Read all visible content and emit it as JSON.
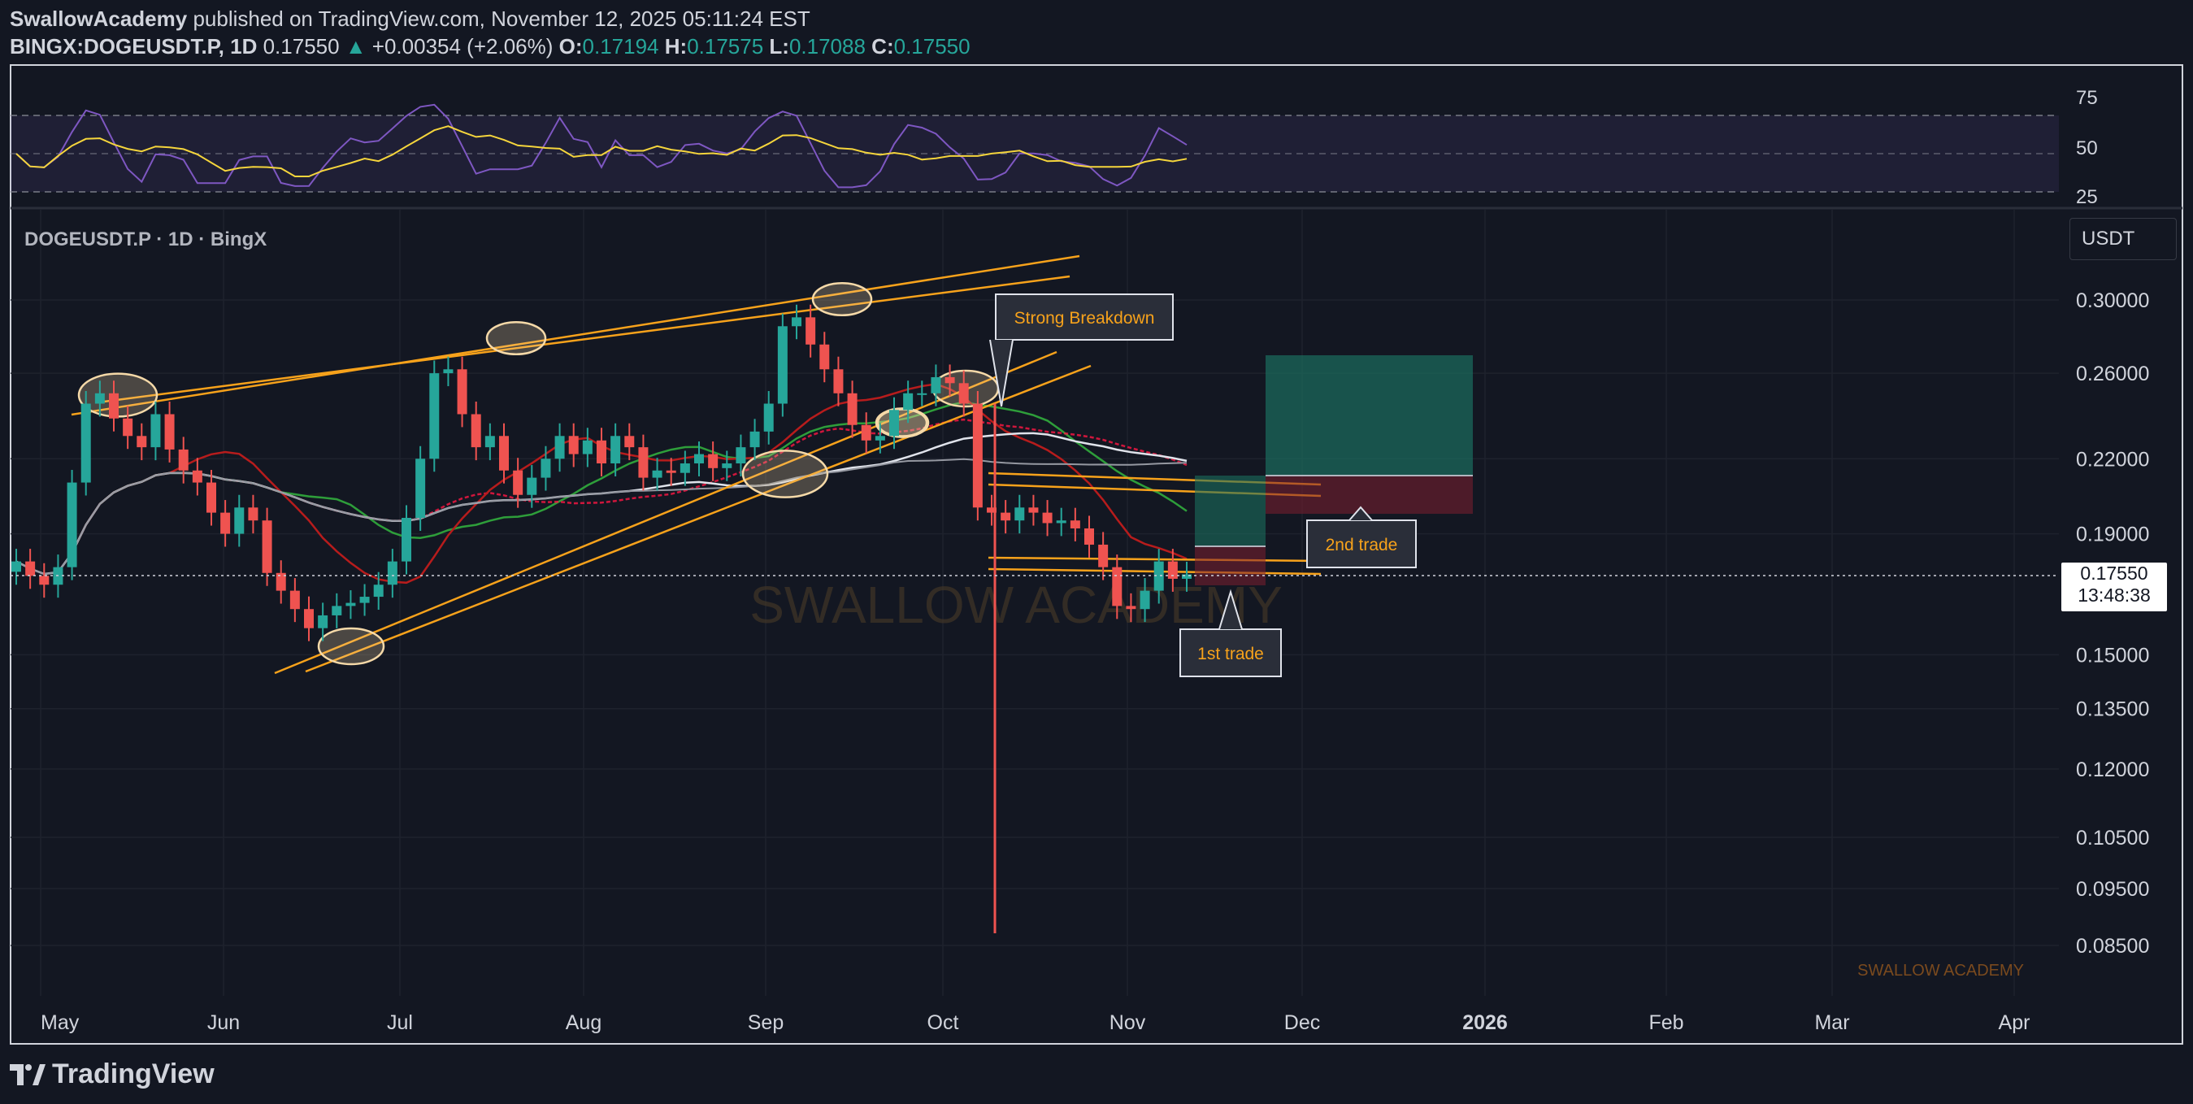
{
  "header": {
    "author": "SwallowAcademy",
    "published_text": "published on TradingView.com, November 12, 2025 05:11:24 EST",
    "symbol": "BINGX:DOGEUSDT.P, 1D",
    "last": "0.17550",
    "change": "+0.00354 (+2.06%)",
    "o_label": "O:",
    "o": "0.17194",
    "h_label": "H:",
    "h": "0.17575",
    "l_label": "L:",
    "l": "0.17088",
    "c_label": "C:",
    "c": "0.17550"
  },
  "chart_title": "DOGEUSDT.P · 1D · BingX",
  "currency": "USDT",
  "watermark": "SWALLOW ACADEMY",
  "footer_watermark": "SWALLOW ACADEMY",
  "brand": "TradingView",
  "price_tag": {
    "price": "0.17550",
    "countdown": "13:48:38"
  },
  "colors": {
    "up": "#26a69a",
    "down": "#ef5350",
    "orange": "#f7a21b",
    "rsi": "#7e57c2",
    "rsi_ma": "#f5d53c",
    "bg": "#131722"
  },
  "annotations": {
    "breakdown": "Strong Breakdown",
    "second": "2nd trade",
    "first": "1st trade"
  },
  "chart_data": {
    "type": "line",
    "title": "DOGEUSDT.P · 1D · BingX",
    "x_axis_labels": [
      "May",
      "Jun",
      "Jul",
      "Aug",
      "Sep",
      "Oct",
      "Nov",
      "Dec",
      "2026",
      "Feb",
      "Mar",
      "Apr"
    ],
    "y_axis_labels": [
      "0.30000",
      "0.26000",
      "0.22000",
      "0.19000",
      "0.15000",
      "0.13500",
      "0.12000",
      "0.10500",
      "0.09500",
      "0.08500"
    ],
    "rsi_axis_labels": [
      "75",
      "50",
      "25"
    ],
    "y_scale": "log",
    "series": [
      {
        "values": [
          0.18,
          0.175,
          0.172,
          0.178,
          0.21,
          0.245,
          0.25,
          0.238,
          0.23,
          0.225,
          0.24,
          0.224,
          0.215,
          0.21,
          0.198,
          0.19,
          0.2,
          0.195,
          0.176,
          0.17,
          0.164,
          0.158,
          0.162,
          0.165,
          0.166,
          0.168,
          0.172,
          0.18,
          0.196,
          0.22,
          0.26,
          0.262,
          0.24,
          0.225,
          0.23,
          0.215,
          0.205,
          0.212,
          0.22,
          0.23,
          0.222,
          0.228,
          0.218,
          0.23,
          0.225,
          0.212,
          0.215,
          0.214,
          0.218,
          0.222,
          0.216,
          0.218,
          0.225,
          0.232,
          0.245,
          0.285,
          0.29,
          0.275,
          0.262,
          0.25,
          0.235,
          0.228,
          0.23,
          0.242,
          0.25,
          0.25,
          0.258,
          0.255,
          0.245,
          0.2,
          0.198,
          0.195,
          0.2,
          0.198,
          0.194,
          0.195,
          0.192,
          0.186,
          0.178,
          0.165,
          0.164,
          0.17,
          0.18,
          0.174,
          0.1755
        ]
      }
    ],
    "annotations": [
      "Strong Breakdown",
      "2nd trade",
      "1st trade"
    ]
  }
}
